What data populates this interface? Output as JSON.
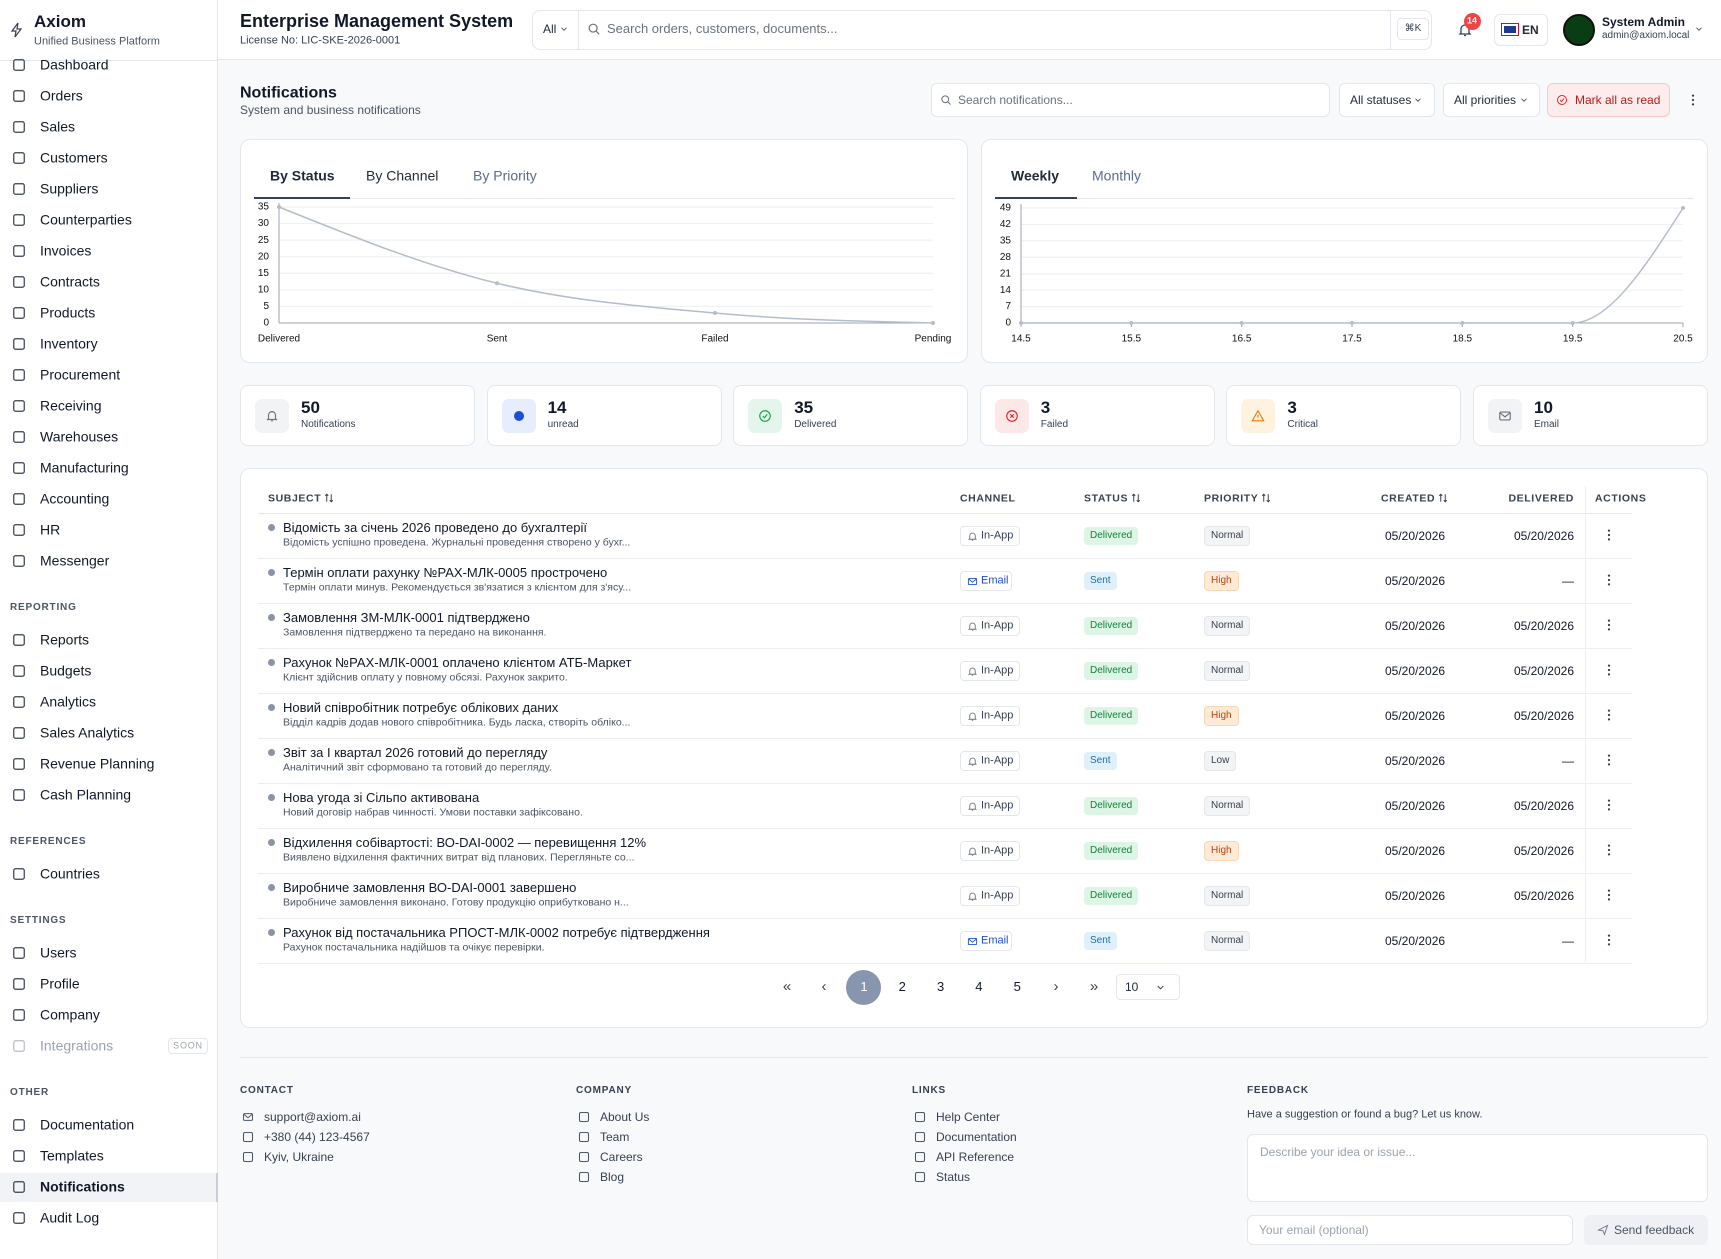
{
  "sidebar": {
    "brand": "Axiom",
    "subtitle": "Unified Business Platform",
    "main": [
      "Dashboard",
      "Orders",
      "Sales",
      "Customers",
      "Suppliers",
      "Counterparties",
      "Invoices",
      "Contracts",
      "Products",
      "Inventory",
      "Procurement",
      "Receiving",
      "Warehouses",
      "Manufacturing",
      "Accounting",
      "HR",
      "Messenger"
    ],
    "sections": [
      {
        "title": "REPORTING",
        "items": [
          "Reports",
          "Budgets",
          "Analytics",
          "Sales Analytics",
          "Revenue Planning",
          "Cash Planning"
        ]
      },
      {
        "title": "REFERENCES",
        "items": [
          "Countries"
        ]
      },
      {
        "title": "SETTINGS",
        "items": [
          "Users",
          "Profile",
          "Company",
          "Integrations"
        ],
        "badge": "SOON"
      },
      {
        "title": "OTHER",
        "items": [
          "Documentation",
          "Templates",
          "Notifications",
          "Audit Log"
        ]
      }
    ]
  },
  "header": {
    "title": "Enterprise Management System",
    "license": "License No: LIC-SKE-2026-0001",
    "scope": "All",
    "search": "Search orders, customers, documents...",
    "shortcut": "⌘K",
    "badge": 14,
    "lang": "EN",
    "user": "System Admin",
    "email": "admin@axiom.local"
  },
  "page": {
    "title": "Notifications",
    "subtitle": "System and business notifications",
    "search": "Search notifications...",
    "status_filter": "All statuses",
    "priority_filter": "All priorities",
    "mark_all": "Mark all as read"
  },
  "chart_data": [
    {
      "type": "line",
      "tabs": [
        "By Status",
        "By Channel",
        "By Priority"
      ],
      "categories": [
        "Delivered",
        "Sent",
        "Failed",
        "Pending"
      ],
      "values": [
        35,
        12,
        3,
        0
      ],
      "color": "#b4bccd",
      "ylim": [
        0,
        35
      ],
      "yticks": [
        0,
        5,
        10,
        15,
        20,
        25,
        30,
        35
      ],
      "grid": true
    },
    {
      "type": "line",
      "tabs": [
        "Weekly",
        "Monthly"
      ],
      "x": [
        14.5,
        15.5,
        16.5,
        17.5,
        18.5,
        19.5,
        20.5
      ],
      "values": [
        0,
        0,
        0,
        0,
        0,
        0,
        49
      ],
      "color": "#b4bccd",
      "xlim": [
        14.5,
        20.5
      ],
      "xticks": [
        14.5,
        15.5,
        16.5,
        17.5,
        18.5,
        19.5,
        20.5
      ],
      "ylim": [
        0,
        49
      ],
      "yticks": [
        0,
        7,
        14,
        21,
        28,
        35,
        42,
        49
      ],
      "grid": true
    }
  ],
  "stats": [
    {
      "value": 50,
      "label": "Notifications"
    },
    {
      "value": 14,
      "label": "unread"
    },
    {
      "value": 35,
      "label": "Delivered"
    },
    {
      "value": 3,
      "label": "Failed"
    },
    {
      "value": 3,
      "label": "Critical"
    },
    {
      "value": 10,
      "label": "Email"
    }
  ],
  "table": {
    "headers": [
      "SUBJECT",
      "CHANNEL",
      "STATUS",
      "PRIORITY",
      "CREATED",
      "DELIVERED",
      "ACTIONS"
    ],
    "rows": [
      {
        "subject": "Відомість за січень 2026 проведено до бухгалтерії",
        "desc": "Відомість успішно проведена. Журнальні проведення створено у бухг...",
        "channel": "In-App",
        "status": "Delivered",
        "priority": "Normal",
        "created": "05/20/2026",
        "delivered": "05/20/2026"
      },
      {
        "subject": "Термін оплати рахунку №РАХ-МЛК-0005 прострочено",
        "desc": "Термін оплати минув. Рекомендується зв'язатися з клієнтом для з'ясу...",
        "channel": "Email",
        "status": "Sent",
        "priority": "High",
        "created": "05/20/2026",
        "delivered": "—"
      },
      {
        "subject": "Замовлення ЗМ-МЛК-0001 підтверджено",
        "desc": "Замовлення підтверджено та передано на виконання.",
        "channel": "In-App",
        "status": "Delivered",
        "priority": "Normal",
        "created": "05/20/2026",
        "delivered": "05/20/2026"
      },
      {
        "subject": "Рахунок №РАХ-МЛК-0001 оплачено клієнтом АТБ-Маркет",
        "desc": "Клієнт здійснив оплату у повному обсязі. Рахунок закрито.",
        "channel": "In-App",
        "status": "Delivered",
        "priority": "Normal",
        "created": "05/20/2026",
        "delivered": "05/20/2026"
      },
      {
        "subject": "Новий співробітник потребує облікових даних",
        "desc": "Відділ кадрів додав нового співробітника. Будь ласка, створіть обліко...",
        "channel": "In-App",
        "status": "Delivered",
        "priority": "High",
        "created": "05/20/2026",
        "delivered": "05/20/2026"
      },
      {
        "subject": "Звіт за І квартал 2026 готовий до перегляду",
        "desc": "Аналітичний звіт сформовано та готовий до перегляду.",
        "channel": "In-App",
        "status": "Sent",
        "priority": "Low",
        "created": "05/20/2026",
        "delivered": "—"
      },
      {
        "subject": "Нова угода зі Сільпо активована",
        "desc": "Новий договір набрав чинності. Умови поставки зафіксовано.",
        "channel": "In-App",
        "status": "Delivered",
        "priority": "Normal",
        "created": "05/20/2026",
        "delivered": "05/20/2026"
      },
      {
        "subject": "Відхилення собівартості: ВО-DAI-0002 — перевищення 12%",
        "desc": "Виявлено відхилення фактичних витрат від планових. Перегляньте со...",
        "channel": "In-App",
        "status": "Delivered",
        "priority": "High",
        "created": "05/20/2026",
        "delivered": "05/20/2026"
      },
      {
        "subject": "Виробниче замовлення ВО-DAI-0001 завершено",
        "desc": "Виробниче замовлення виконано. Готову продукцію оприбутковано н...",
        "channel": "In-App",
        "status": "Delivered",
        "priority": "Normal",
        "created": "05/20/2026",
        "delivered": "05/20/2026"
      },
      {
        "subject": "Рахунок від постачальника РПОСТ-МЛК-0002 потребує підтвердження",
        "desc": "Рахунок постачальника надійшов та очікує перевірки.",
        "channel": "Email",
        "status": "Sent",
        "priority": "Normal",
        "created": "05/20/2026",
        "delivered": "—"
      }
    ]
  },
  "pagination": {
    "pages": [
      1,
      2,
      3,
      4,
      5
    ],
    "page_size": 10
  },
  "footer": {
    "columns": [
      {
        "title": "CONTACT",
        "items": [
          "support@axiom.ai",
          "+380 (44) 123-4567",
          "Kyiv, Ukraine"
        ]
      },
      {
        "title": "COMPANY",
        "items": [
          "About Us",
          "Team",
          "Careers",
          "Blog"
        ]
      },
      {
        "title": "LINKS",
        "items": [
          "Help Center",
          "Documentation",
          "API Reference",
          "Status"
        ]
      }
    ],
    "feedback": {
      "title": "FEEDBACK",
      "text": "Have a suggestion or found a bug? Let us know.",
      "placeholder": "Describe your idea or issue...",
      "email": "Your email (optional)",
      "button": "Send feedback"
    }
  }
}
